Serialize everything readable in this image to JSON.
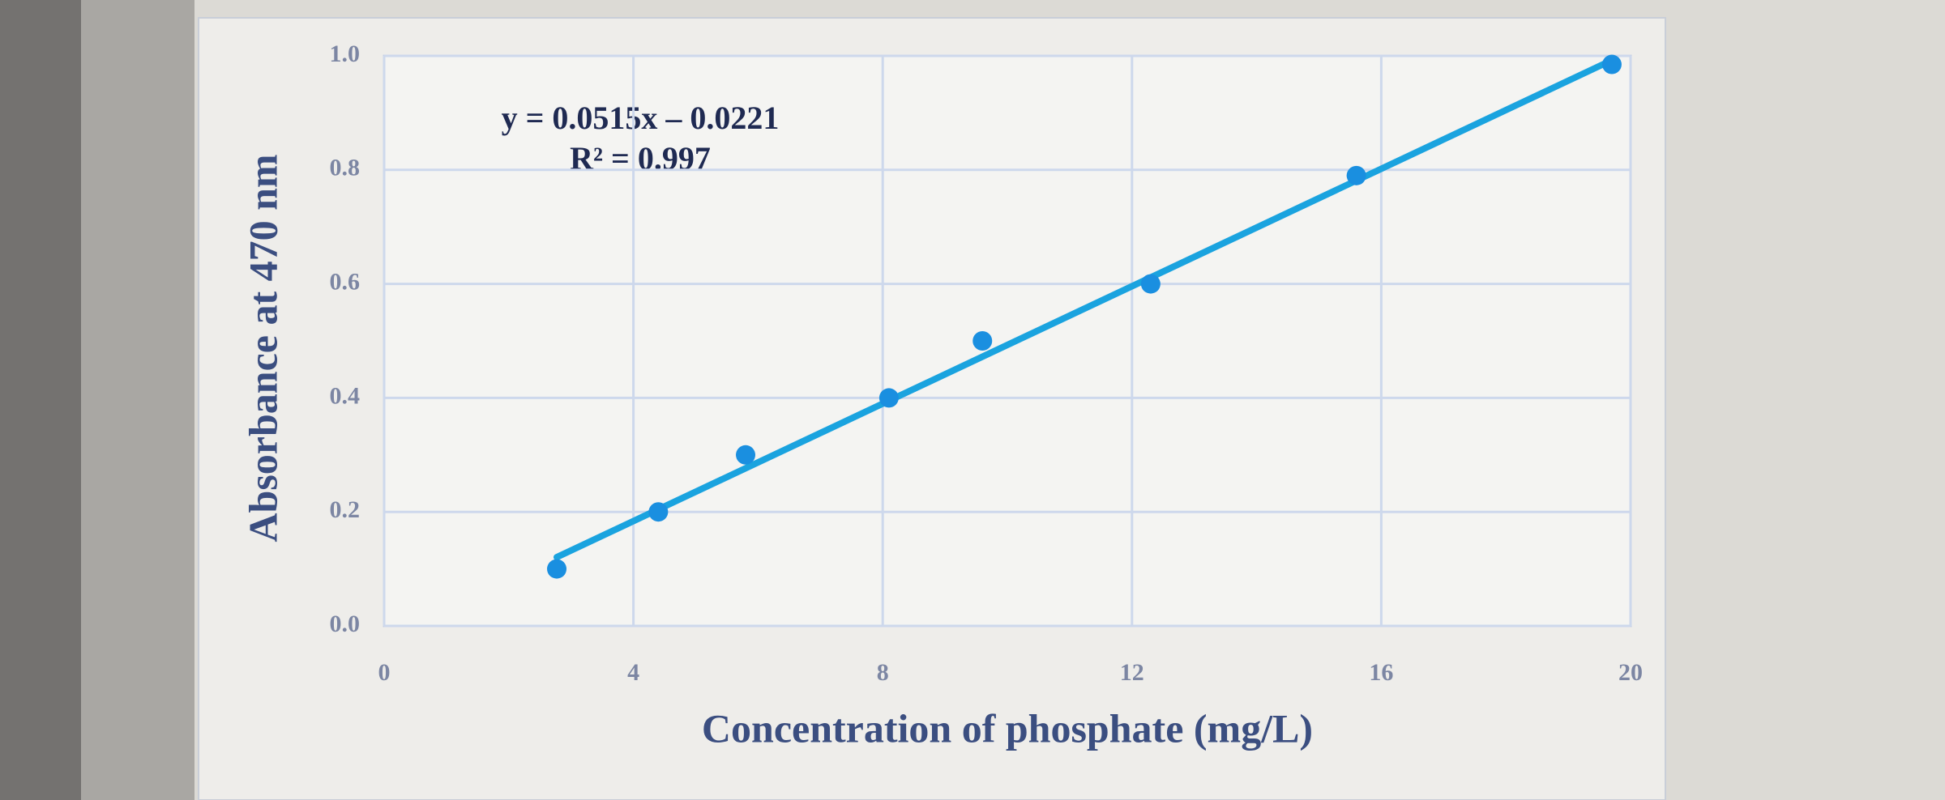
{
  "chart_data": {
    "type": "scatter",
    "x_label": "Concentration of phosphate (mg/L)",
    "y_label": "Absorbance at 470 nm",
    "annotations": [
      "y = 0.0515x – 0.0221",
      "R² = 0.997"
    ],
    "trendline": {
      "slope": 0.0515,
      "intercept": -0.0221,
      "color": "#1aa3df"
    },
    "series": [
      {
        "name": "Absorbance",
        "color": "#1a8fe0",
        "x": [
          2.77,
          4.4,
          5.8,
          8.1,
          9.6,
          12.3,
          15.6,
          19.7
        ],
        "values": [
          0.1,
          0.2,
          0.3,
          0.4,
          0.5,
          0.6,
          0.79,
          0.985
        ]
      }
    ],
    "xlim": [
      0,
      20
    ],
    "xticks": [
      0,
      4,
      8,
      12,
      16,
      20
    ],
    "ylim": [
      0,
      1
    ],
    "yticks": [
      {
        "value": 0,
        "label": "0.0"
      },
      0.2,
      0.4,
      0.6,
      0.8,
      {
        "value": 1,
        "label": "1.0"
      }
    ],
    "grid": true
  }
}
